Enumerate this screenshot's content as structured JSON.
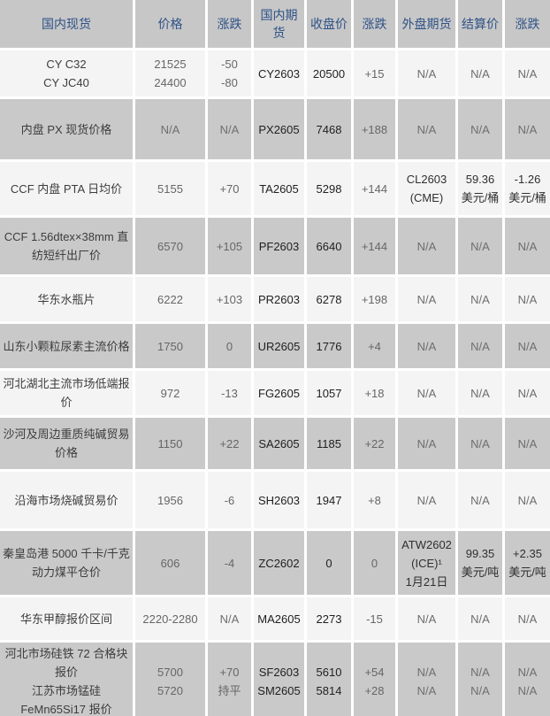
{
  "colors": {
    "header_bg": "#c7c7c7",
    "header_text": "#2e5287",
    "row_gray": "#c9c9c9",
    "row_light": "#f4f4f4"
  },
  "table": {
    "columns": [
      {
        "key": "domestic_spot",
        "label": "国内现货"
      },
      {
        "key": "price",
        "label": "价格"
      },
      {
        "key": "spot_change",
        "label": "涨跌"
      },
      {
        "key": "domestic_futures",
        "label": "国内期货"
      },
      {
        "key": "close_price",
        "label": "收盘价"
      },
      {
        "key": "futures_change",
        "label": "涨跌"
      },
      {
        "key": "external_futures",
        "label": "外盘期货"
      },
      {
        "key": "settlement_price",
        "label": "结算价"
      },
      {
        "key": "external_change",
        "label": "涨跌"
      }
    ],
    "rows": [
      {
        "cells": [
          "CY C32\nCY JC40",
          "21525\n24400",
          "-50\n-80",
          "CY2603",
          "20500",
          "+15",
          "N/A",
          "N/A",
          "N/A"
        ]
      },
      {
        "cells": [
          "内盘 PX 现货价格",
          "N/A",
          "N/A",
          "PX2605",
          "7468",
          "+188",
          "N/A",
          "N/A",
          "N/A"
        ]
      },
      {
        "cells": [
          "CCF 内盘 PTA 日均价",
          "5155",
          "+70",
          "TA2605",
          "5298",
          "+144",
          "CL2603\n(CME)",
          "59.36\n美元/桶",
          "-1.26\n美元/桶"
        ]
      },
      {
        "cells": [
          "CCF 1.56dtex×38mm 直纺短纤出厂价",
          "6570",
          "+105",
          "PF2603",
          "6640",
          "+144",
          "N/A",
          "N/A",
          "N/A"
        ]
      },
      {
        "cells": [
          "华东水瓶片",
          "6222",
          "+103",
          "PR2603",
          "6278",
          "+198",
          "N/A",
          "N/A",
          "N/A"
        ]
      },
      {
        "cells": [
          "山东小颗粒尿素主流价格",
          "1750",
          "0",
          "UR2605",
          "1776",
          "+4",
          "N/A",
          "N/A",
          "N/A"
        ]
      },
      {
        "cells": [
          "河北湖北主流市场低端报价",
          "972",
          "-13",
          "FG2605",
          "1057",
          "+18",
          "N/A",
          "N/A",
          "N/A"
        ]
      },
      {
        "cells": [
          "沙河及周边重质纯碱贸易价格",
          "1150",
          "+22",
          "SA2605",
          "1185",
          "+22",
          "N/A",
          "N/A",
          "N/A"
        ]
      },
      {
        "cells": [
          "沿海市场烧碱贸易价",
          "1956",
          "-6",
          "SH2603",
          "1947",
          "+8",
          "N/A",
          "N/A",
          "N/A"
        ]
      },
      {
        "cells": [
          "秦皇岛港 5000 千卡/千克动力煤平仓价",
          "606",
          "-4",
          "ZC2602",
          "0",
          "0",
          "ATW2602\n(ICE)¹\n1月21日",
          "99.35\n美元/吨",
          "+2.35\n美元/吨"
        ]
      },
      {
        "cells": [
          "华东甲醇报价区间",
          "2220-2280",
          "N/A",
          "MA2605",
          "2273",
          "-15",
          "N/A",
          "N/A",
          "N/A"
        ]
      },
      {
        "cells": [
          "河北市场硅铁 72 合格块报价\n江苏市场锰硅 FeMn65Si17 报价",
          "5700\n5720",
          "+70\n持平",
          "SF2603\nSM2605",
          "5610\n5814",
          "+54\n+28",
          "N/A\nN/A",
          "N/A\nN/A",
          "N/A\nN/A"
        ]
      }
    ]
  }
}
